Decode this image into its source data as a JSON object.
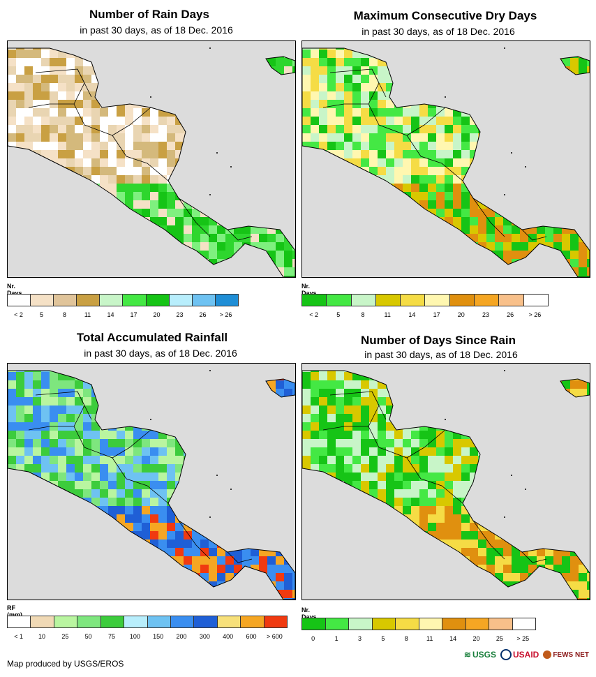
{
  "panels": [
    {
      "title": "Number of Rain Days",
      "subtitle": "in past 30 days, as of 18 Dec. 2016",
      "legend_title": "Nr. Days",
      "legend_labels": [
        "< 2",
        "5",
        "8",
        "11",
        "14",
        "17",
        "20",
        "23",
        "26",
        "> 26"
      ],
      "legend_colors": [
        "#ffffff",
        "#f5e1c6",
        "#e0c49a",
        "#c9a043",
        "#c8f5c8",
        "#44e844",
        "#16c416",
        "#b8eefc",
        "#6ec2f2",
        "#1f8ed6"
      ],
      "land_colors": [
        "#e9d5b2",
        "#d4b97c",
        "#c9a043",
        "#ffffff",
        "#f5e1c6",
        "#2ed62e",
        "#16c416",
        "#7ff07f"
      ]
    },
    {
      "title": "Maximum Consecutive Dry Days",
      "subtitle": "in past 30 days, as of 18 Dec. 2016",
      "legend_title": "Nr. Days",
      "legend_labels": [
        "< 2",
        "5",
        "8",
        "11",
        "14",
        "17",
        "20",
        "23",
        "26",
        "> 26"
      ],
      "legend_colors": [
        "#16c416",
        "#44e844",
        "#c8f5c8",
        "#d8c800",
        "#f5dc45",
        "#fff7b0",
        "#e0900f",
        "#f5a623",
        "#f8c08a",
        "#ffffff"
      ],
      "land_colors": [
        "#f5dc45",
        "#fff7b0",
        "#c8f5c8",
        "#44e844",
        "#16c416",
        "#e0900f",
        "#d8c800"
      ]
    },
    {
      "title": "Total Accumulated Rainfall",
      "subtitle": "in past 30 days, as of 18 Dec. 2016",
      "legend_title": "RF (mm)",
      "legend_labels": [
        "< 1",
        "10",
        "25",
        "50",
        "75",
        "100",
        "150",
        "200",
        "300",
        "400",
        "600",
        "> 600"
      ],
      "legend_colors": [
        "#ffffff",
        "#f0d9b5",
        "#b9f5a0",
        "#7ee67e",
        "#3ccc3c",
        "#b8eefc",
        "#6ec2f2",
        "#3a8ef0",
        "#1f5fd6",
        "#f7e07a",
        "#f5a623",
        "#f03a10"
      ],
      "land_colors": [
        "#7ee67e",
        "#3ccc3c",
        "#b9f5a0",
        "#6ec2f2",
        "#3a8ef0",
        "#1f5fd6",
        "#f5a623",
        "#f03a10"
      ]
    },
    {
      "title": "Number of Days Since Rain",
      "subtitle": "in past 30 days, as of 18 Dec. 2016",
      "legend_title": "Nr. Days",
      "legend_labels": [
        "0",
        "1",
        "3",
        "5",
        "8",
        "11",
        "14",
        "20",
        "25",
        "> 25"
      ],
      "legend_colors": [
        "#16c416",
        "#44e844",
        "#c8f5c8",
        "#d8c800",
        "#f5dc45",
        "#fff7b0",
        "#e0900f",
        "#f5a623",
        "#f8c08a",
        "#ffffff"
      ],
      "land_colors": [
        "#d8c800",
        "#c8f5c8",
        "#44e844",
        "#16c416",
        "#f5dc45",
        "#e0900f"
      ]
    }
  ],
  "footer": {
    "credit": "Map produced by USGS/EROS",
    "logos": [
      "USGS",
      "USAID",
      "FEWS NET"
    ]
  }
}
